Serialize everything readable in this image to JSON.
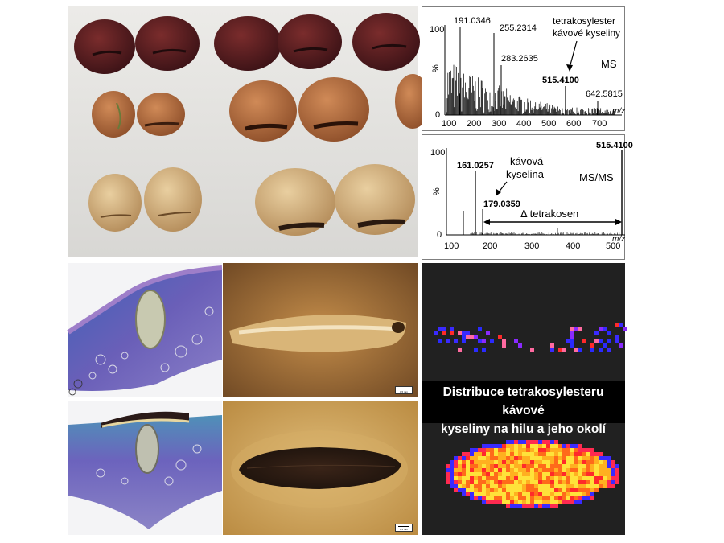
{
  "ms_spectrum": {
    "y_tick_top": "100",
    "y_tick_bottom": "0",
    "y_label": "%",
    "x_label": "m/z",
    "x_ticks": [
      "100",
      "200",
      "300",
      "400",
      "500",
      "600",
      "700"
    ],
    "peak_labels": [
      "191.0346",
      "255.2314",
      "283.2635",
      "515.4100",
      "642.5815"
    ],
    "compound_label_line1": "tetrakosylester",
    "compound_label_line2": "kávové kyseliny",
    "mode_label": "MS"
  },
  "msms_spectrum": {
    "y_tick_top": "100",
    "y_tick_bottom": "0",
    "y_label": "%",
    "x_label": "m/z",
    "x_ticks": [
      "100",
      "200",
      "300",
      "400",
      "500"
    ],
    "peak_labels": [
      "161.0257",
      "179.0359",
      "515.4100"
    ],
    "fragment_label_line1": "kávová",
    "fragment_label_line2": "kyselina",
    "mode_label": "MS/MS",
    "delta_label": "Δ tetrakosen"
  },
  "imaging": {
    "caption_line1": "Distribuce tetrakosylesteru kávové",
    "caption_line2": "kyseliny na hilu a jeho okolí"
  },
  "micrographs": {
    "scale_label_top": "0.5 mm",
    "scale_label_bottom": "0.5 mm"
  }
}
